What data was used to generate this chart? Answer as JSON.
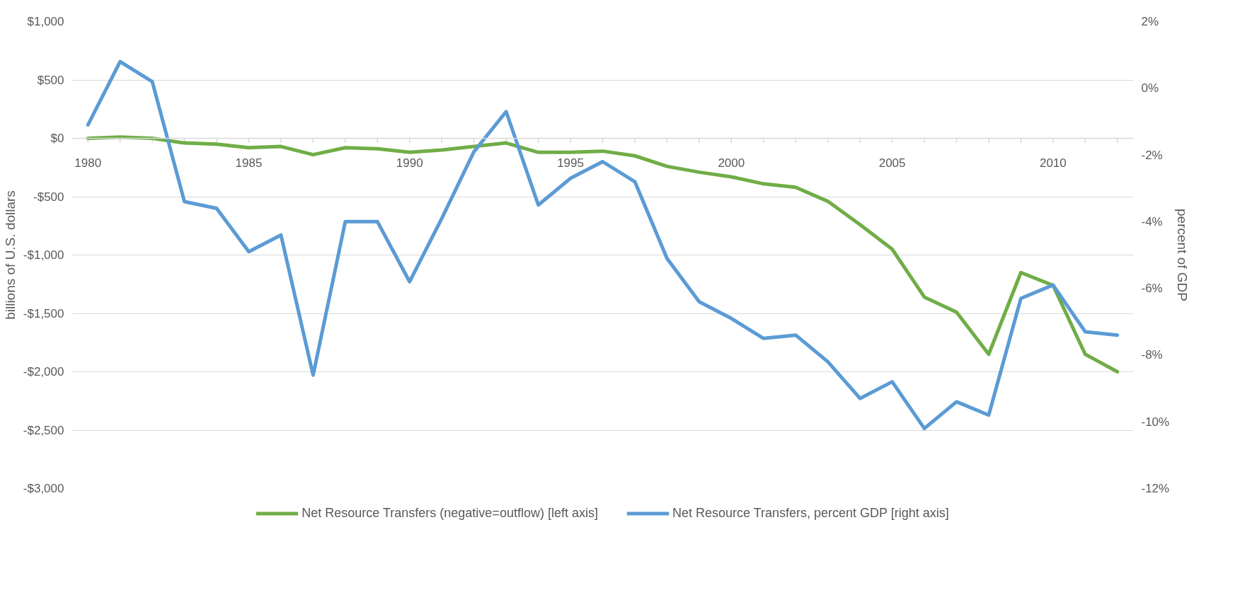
{
  "chart_data": {
    "type": "line",
    "ylabel": "billions of U.S. dollars",
    "y2label": "percent of GDP",
    "x": [
      1980,
      1981,
      1982,
      1983,
      1984,
      1985,
      1986,
      1987,
      1988,
      1989,
      1990,
      1991,
      1992,
      1993,
      1994,
      1995,
      1996,
      1997,
      1998,
      1999,
      2000,
      2001,
      2002,
      2003,
      2004,
      2005,
      2006,
      2007,
      2008,
      2009,
      2010,
      2011,
      2012
    ],
    "series": [
      {
        "name": "Net Resource Transfers (negative=outflow) [left axis]",
        "color": "#70ad47",
        "values": [
          0,
          10,
          0,
          -40,
          -50,
          -80,
          -70,
          -140,
          -80,
          -90,
          -120,
          -100,
          -70,
          -40,
          -120,
          -120,
          -110,
          -150,
          -240,
          -290,
          -330,
          -390,
          -420,
          -540,
          -740,
          -950,
          -1360,
          -1490,
          -1850,
          -1150,
          -1260,
          -1850,
          -2000
        ]
      },
      {
        "name": "Net Resource Transfers, percent GDP [right axis]",
        "color": "#5b9bd5",
        "axis": "y2",
        "values": [
          -1.1,
          0.8,
          0.2,
          -3.4,
          -3.6,
          -4.9,
          -4.4,
          -8.6,
          -4.0,
          -4.0,
          -5.8,
          -3.9,
          -1.9,
          -0.7,
          -3.5,
          -2.7,
          -2.2,
          -2.8,
          -5.1,
          -6.4,
          -6.9,
          -7.5,
          -7.4,
          -8.2,
          -9.3,
          -8.8,
          -10.2,
          -9.4,
          -9.8,
          -6.3,
          -5.9,
          -7.3,
          -7.4
        ]
      }
    ],
    "xlim": [
      1979.5,
      2012.5
    ],
    "xticks": [
      1980,
      {
        "value": 1981,
        "label": null
      },
      {
        "value": 1982,
        "label": null
      },
      {
        "value": 1983,
        "label": null
      },
      {
        "value": 1984,
        "label": null
      },
      1985,
      {
        "value": 1986,
        "label": null
      },
      {
        "value": 1987,
        "label": null
      },
      {
        "value": 1988,
        "label": null
      },
      {
        "value": 1989,
        "label": null
      },
      1990,
      {
        "value": 1991,
        "label": null
      },
      {
        "value": 1992,
        "label": null
      },
      {
        "value": 1993,
        "label": null
      },
      {
        "value": 1994,
        "label": null
      },
      1995,
      {
        "value": 1996,
        "label": null
      },
      {
        "value": 1997,
        "label": null
      },
      {
        "value": 1998,
        "label": null
      },
      {
        "value": 1999,
        "label": null
      },
      2000,
      {
        "value": 2001,
        "label": null
      },
      {
        "value": 2002,
        "label": null
      },
      {
        "value": 2003,
        "label": null
      },
      {
        "value": 2004,
        "label": null
      },
      2005,
      {
        "value": 2006,
        "label": null
      },
      {
        "value": 2007,
        "label": null
      },
      {
        "value": 2008,
        "label": null
      },
      {
        "value": 2009,
        "label": null
      },
      2010,
      {
        "value": 2011,
        "label": null
      },
      {
        "value": 2012,
        "label": null
      }
    ],
    "ylim": [
      -3000,
      1000
    ],
    "yticks": [
      {
        "value": 1000,
        "label": "$1,000"
      },
      {
        "value": 500,
        "label": "$500"
      },
      {
        "value": 0,
        "label": "$0"
      },
      {
        "value": -500,
        "label": "-$500"
      },
      {
        "value": -1000,
        "label": "-$1,000"
      },
      {
        "value": -1500,
        "label": "-$1,500"
      },
      {
        "value": -2000,
        "label": "-$2,000"
      },
      {
        "value": -2500,
        "label": "-$2,500"
      },
      {
        "value": -3000,
        "label": "-$3,000"
      }
    ],
    "y2lim": [
      -12,
      2
    ],
    "y2ticks": [
      {
        "value": 2,
        "label": "2%"
      },
      {
        "value": 0,
        "label": "0%"
      },
      {
        "value": -2,
        "label": "-2%"
      },
      {
        "value": -4,
        "label": "-4%"
      },
      {
        "value": -6,
        "label": "-6%"
      },
      {
        "value": -8,
        "label": "-8%"
      },
      {
        "value": -10,
        "label": "-10%"
      },
      {
        "value": -12,
        "label": "-12%"
      }
    ],
    "grid": "y",
    "legend": "bottom",
    "marker": "none",
    "line_style": "solid"
  }
}
